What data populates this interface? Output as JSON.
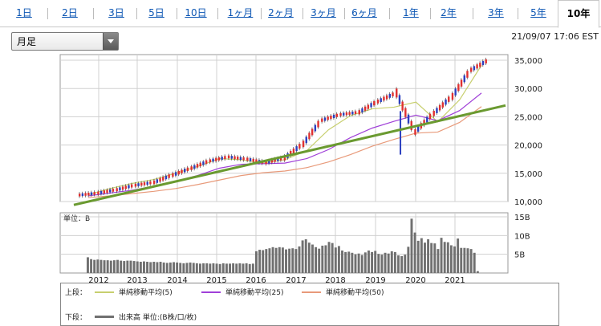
{
  "tabs": [
    {
      "label": "1日",
      "active": false
    },
    {
      "label": "2日",
      "active": false
    },
    {
      "label": "3日",
      "active": false
    },
    {
      "label": "5日",
      "active": false
    },
    {
      "label": "10日",
      "active": false
    },
    {
      "label": "1ヶ月",
      "active": false
    },
    {
      "label": "2ヶ月",
      "active": false
    },
    {
      "label": "3ヶ月",
      "active": false
    },
    {
      "label": "6ヶ月",
      "active": false
    },
    {
      "label": "1年",
      "active": false
    },
    {
      "label": "2年",
      "active": false
    },
    {
      "label": "3年",
      "active": false
    },
    {
      "label": "5年",
      "active": false
    },
    {
      "label": "10年",
      "active": true
    }
  ],
  "period_select": {
    "value": "月足"
  },
  "timestamp": "21/09/07 17:06 EST",
  "colors": {
    "candle_up": "#e03030",
    "candle_down": "#2b3fbf",
    "ma5": "#c7cf6e",
    "ma25": "#a040d8",
    "ma50": "#e89a7a",
    "trend": "#6a9a30",
    "volume": "#707070",
    "grid": "#d0d0d0"
  },
  "chart_data": [
    {
      "type": "candlestick",
      "title": "",
      "x_ticks": [
        "2012",
        "2013",
        "2014",
        "2015",
        "2016",
        "2017",
        "2018",
        "2019",
        "2020",
        "2021"
      ],
      "y_ticks": [
        "35,000",
        "30,000",
        "25,000",
        "20,000",
        "15,000",
        "10,000"
      ],
      "ylim": [
        10000,
        36000
      ],
      "series": [
        {
          "name": "単純移動平均(5)",
          "values": [
            11200,
            12300,
            13200,
            13900,
            15000,
            16200,
            17600,
            17400,
            16800,
            17400,
            19000,
            22700,
            25200,
            26400,
            26700,
            27600,
            24100,
            28000,
            34100
          ]
        },
        {
          "name": "単純移動平均(25)",
          "values": [
            11000,
            11500,
            12000,
            12700,
            13600,
            14600,
            15900,
            16600,
            16700,
            16800,
            17600,
            19200,
            21300,
            23000,
            24200,
            25300,
            24300,
            26100,
            29200
          ]
        },
        {
          "name": "単純移動平均(50)",
          "values": [
            10700,
            11000,
            11400,
            11800,
            12300,
            13000,
            13800,
            14600,
            15100,
            15400,
            16000,
            17000,
            18300,
            19800,
            21000,
            22100,
            22300,
            24000,
            26800
          ]
        }
      ],
      "candles": [
        11500,
        12100,
        12900,
        13400,
        14700,
        15900,
        17200,
        17900,
        17500,
        16900,
        17700,
        20200,
        24400,
        25400,
        25800,
        27700,
        29200,
        22300,
        25600,
        28600,
        33300,
        35100
      ]
    },
    {
      "type": "bar",
      "title": "",
      "unit_label": "単位：B",
      "y_ticks": [
        "15B",
        "10B",
        "5B"
      ],
      "ylim": [
        0,
        15
      ],
      "values": [
        4.2,
        3.7,
        3.5,
        3.6,
        3.5,
        3.4,
        3.4,
        3.3,
        3.4,
        3.5,
        3.3,
        3.2,
        3.3,
        3.3,
        3.2,
        3.1,
        3.0,
        3.1,
        3.0,
        2.9,
        3.0,
        2.9,
        3.0,
        2.8,
        2.7,
        2.8,
        2.9,
        2.8,
        2.7,
        2.6,
        2.7,
        2.8,
        2.7,
        2.6,
        2.5,
        2.6,
        2.6,
        2.5,
        2.6,
        2.5,
        2.4,
        2.6,
        2.5,
        2.5,
        2.6,
        2.5,
        2.6,
        2.5,
        2.6,
        2.4,
        2.5,
        5.8,
        6.2,
        6.1,
        6.4,
        6.6,
        6.9,
        6.7,
        6.9,
        6.8,
        6.3,
        6.5,
        6.6,
        6.4,
        7.1,
        8.7,
        9.0,
        8.1,
        7.6,
        6.9,
        6.5,
        7.3,
        7.4,
        8.3,
        8.0,
        6.8,
        7.2,
        6.0,
        5.6,
        5.7,
        5.4,
        5.0,
        5.2,
        4.8,
        5.5,
        6.0,
        5.6,
        5.9,
        5.1,
        4.9,
        5.4,
        5.2,
        5.8,
        5.6,
        4.7,
        4.5,
        4.9,
        7.0,
        14.5,
        10.8,
        8.6,
        9.3,
        8.1,
        9.0,
        8.0,
        7.9,
        6.4,
        9.4,
        8.3,
        8.2,
        7.4,
        7.1,
        9.2,
        6.7,
        6.7,
        6.6,
        6.4,
        5.4,
        0.5
      ],
      "x_ticks": [
        "2012",
        "2013",
        "2014",
        "2015",
        "2016",
        "2017",
        "2018",
        "2019",
        "2020",
        "2021"
      ]
    }
  ],
  "legend": {
    "upper_label": "上段：",
    "lower_label": "下段：",
    "items": [
      "単純移動平均(5)",
      "単純移動平均(25)",
      "単純移動平均(50)"
    ],
    "volume_label": "出来高 単位:(B株/口/枚)"
  }
}
